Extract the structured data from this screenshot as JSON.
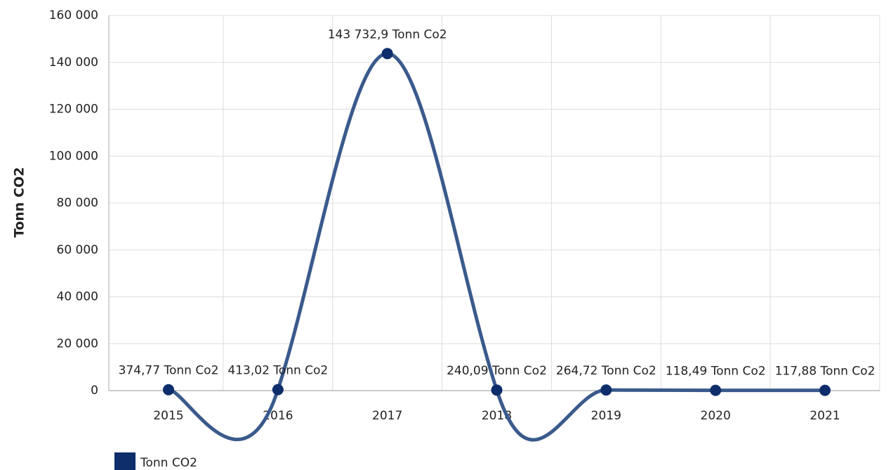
{
  "chart_data": {
    "type": "line",
    "y_label": "Tonn CO2",
    "categories": [
      "2015",
      "2016",
      "2017",
      "2018",
      "2019",
      "2020",
      "2021"
    ],
    "series": [
      {
        "name": "Tonn CO2",
        "color": "#0d2d6b",
        "line_color": "#3a5a8c",
        "values": [
          374.77,
          413.02,
          143732.9,
          240.09,
          264.72,
          118.49,
          117.88
        ],
        "value_labels": [
          "374,77 Tonn Co2",
          "413,02 Tonn Co2",
          "143 732,9 Tonn Co2",
          "240,09 Tonn Co2",
          "264,72 Tonn Co2",
          "118,49 Tonn Co2",
          "117,88 Tonn Co2"
        ]
      }
    ],
    "ylim": [
      0,
      160000
    ],
    "yticks": [
      0,
      {
        "value": 20000,
        "label": "20 000"
      },
      {
        "value": 40000,
        "label": "40 000"
      },
      {
        "value": 60000,
        "label": "60 000"
      },
      {
        "value": 80000,
        "label": "80 000"
      },
      {
        "value": 100000,
        "label": "100 000"
      },
      {
        "value": 120000,
        "label": "120 000"
      },
      {
        "value": 140000,
        "label": "140 000"
      },
      {
        "value": 160000,
        "label": "160 000"
      }
    ],
    "grid": true
  }
}
